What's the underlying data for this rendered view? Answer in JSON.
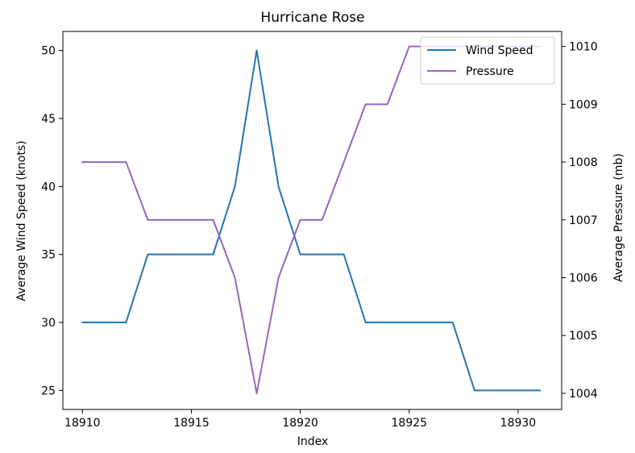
{
  "chart_data": {
    "type": "line",
    "title": "Hurricane Rose",
    "xlabel": "Index",
    "ylabel_left": "Average Wind Speed (knots)",
    "ylabel_right": "Average Pressure (mb)",
    "x": [
      18910,
      18911,
      18912,
      18913,
      18914,
      18915,
      18916,
      18917,
      18918,
      18919,
      18920,
      18921,
      18922,
      18923,
      18924,
      18925,
      18926,
      18927,
      18928,
      18929,
      18930,
      18931
    ],
    "xlim": [
      18909.1,
      18932.0
    ],
    "ylim_left": [
      23.6,
      51.4
    ],
    "ylim_right": [
      1003.72,
      1010.26
    ],
    "xticks": [
      18910,
      18915,
      18920,
      18925,
      18930
    ],
    "yticks_left": [
      25,
      30,
      35,
      40,
      45,
      50
    ],
    "yticks_right": [
      1004,
      1005,
      1006,
      1007,
      1008,
      1009,
      1010
    ],
    "grid": false,
    "legend_position": "top-right",
    "series": [
      {
        "name": "Wind Speed",
        "axis": "left",
        "color": "#1f77b4",
        "values": [
          30,
          30,
          30,
          35,
          35,
          35,
          35,
          40,
          50,
          40,
          35,
          35,
          35,
          30,
          30,
          30,
          30,
          30,
          25,
          25,
          25,
          25
        ]
      },
      {
        "name": "Pressure",
        "axis": "right",
        "color": "#9467bd",
        "values": [
          1008,
          1008,
          1008,
          1007,
          1007,
          1007,
          1007,
          1006,
          1004,
          1006,
          1007,
          1007,
          1008,
          1009,
          1009,
          1010,
          1010,
          1010,
          1010,
          1010,
          1010,
          1010
        ]
      }
    ]
  }
}
